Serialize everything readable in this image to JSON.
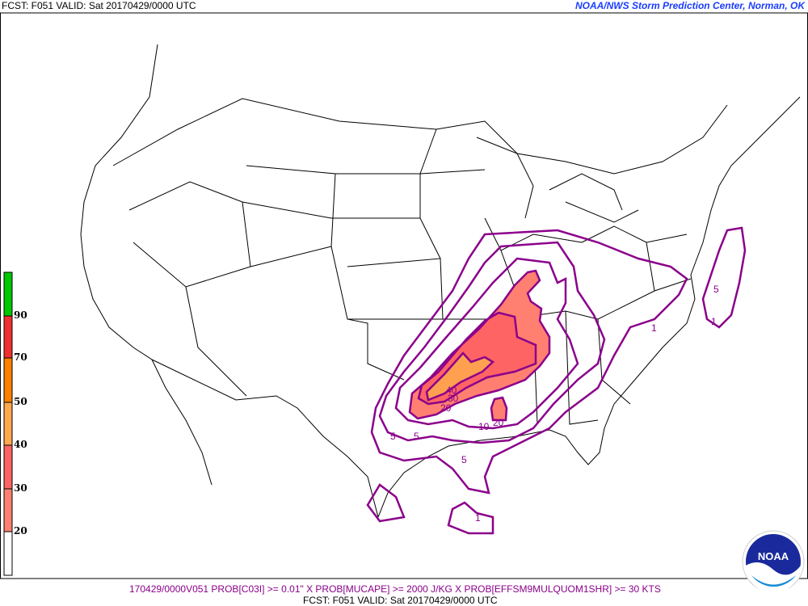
{
  "header": {
    "left": "FCST: F051  VALID: Sat  20170429/0000 UTC",
    "right": "NOAA/NWS Storm Prediction Center, Norman, OK"
  },
  "footer": {
    "product": "170429/0000V051 PROB[C03I] >= 0.01\" X PROB[MUCAPE] >= 2000 J/KG X PROB[EFFSM9MULQUOM1SHR] >= 30 KTS",
    "valid": "FCST: F051  VALID: Sat  20170429/0000 UTC"
  },
  "legend": {
    "labels": [
      "90",
      "70",
      "50",
      "40",
      "30",
      "20"
    ],
    "colors": [
      "#00c800",
      "#f03030",
      "#ff8000",
      "#ffa850",
      "#ff6464",
      "#ff8070",
      "#ffffff"
    ]
  },
  "contours": {
    "line_color": "#8b008b",
    "labels": [
      "1",
      "1",
      "1",
      "5",
      "5",
      "5",
      "5",
      "10",
      "20",
      "20",
      "30",
      "40"
    ]
  },
  "logo": {
    "text": "NOAA"
  }
}
